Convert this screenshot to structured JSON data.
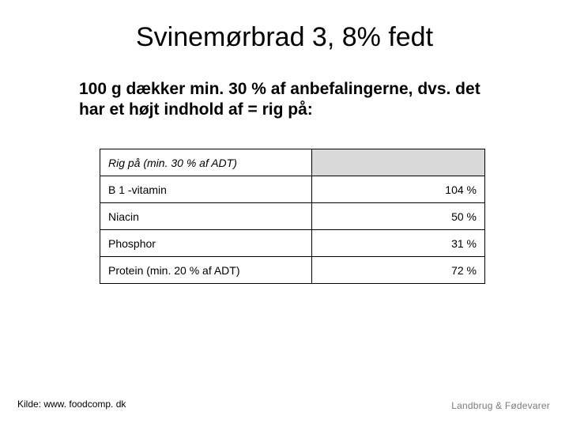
{
  "title": "Svinemørbrad 3, 8% fedt",
  "subtitle": "100 g dækker min. 30 % af anbefalingerne, dvs. det har et højt indhold af = rig på:",
  "table": {
    "header_left": "Rig på (min. 30 % af ADT)",
    "rows": [
      {
        "name": "B 1 -vitamin",
        "value": "104 %"
      },
      {
        "name": "Niacin",
        "value": "50 %"
      },
      {
        "name": "Phosphor",
        "value": "31 %"
      },
      {
        "name": "Protein (min. 20 % af ADT)",
        "value": "72 %"
      }
    ]
  },
  "source": "Kilde: www. foodcomp. dk",
  "logo_text": "Landbrug & Fødevarer",
  "colors": {
    "background": "#ffffff",
    "text": "#000000",
    "header_fill": "#d9d9d9",
    "logo_color": "#7a7a7a"
  }
}
